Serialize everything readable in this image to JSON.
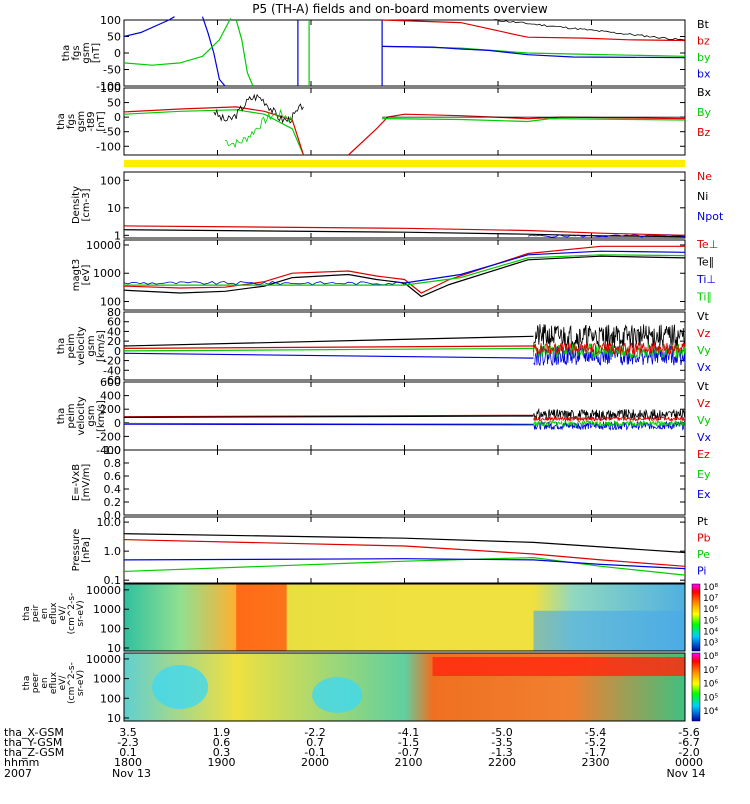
{
  "title": "P5 (TH-A) fields and on-board moments overview",
  "colors": {
    "black": "#000000",
    "red": "#dd0000",
    "green": "#00cc00",
    "blue": "#0000dd",
    "yellow": "#ffee00"
  },
  "chart_data": [
    {
      "type": "line",
      "id": "fgs",
      "ylabel": [
        "tha",
        "fgs",
        "gsm",
        "[nT]"
      ],
      "ylim": [
        -100,
        100
      ],
      "yticks": [
        "100",
        "50",
        "0",
        "-50",
        "-100"
      ],
      "ytick_values": [
        100,
        50,
        0,
        -50,
        -100
      ],
      "legend": [
        {
          "label": "Bt",
          "color": "black"
        },
        {
          "label": "bz",
          "color": "red"
        },
        {
          "label": "by",
          "color": "green"
        },
        {
          "label": "bx",
          "color": "blue"
        }
      ]
    },
    {
      "type": "line",
      "id": "fgs_t89",
      "ylabel": [
        "tha",
        "fgs",
        "gsm",
        "-t89",
        "[nT]"
      ],
      "ylim": [
        -130,
        100
      ],
      "yticks": [
        "100",
        "50",
        "0",
        "-50",
        "-100"
      ],
      "ytick_values": [
        100,
        50,
        0,
        -50,
        -100
      ],
      "legend": [
        {
          "label": "Bx",
          "color": "black"
        },
        {
          "label": "By",
          "color": "green"
        },
        {
          "label": "Bz",
          "color": "red"
        }
      ]
    },
    {
      "type": "line",
      "id": "density",
      "log": true,
      "ylabel": [
        "Density",
        "[cm-3]"
      ],
      "ylim": [
        0.8,
        200
      ],
      "yticks": [
        "100",
        "10",
        "1"
      ],
      "ytick_values": [
        100,
        10,
        1
      ],
      "legend": [
        {
          "label": "Ne",
          "color": "red"
        },
        {
          "label": "Ni",
          "color": "black"
        },
        {
          "label": "Npot",
          "color": "blue"
        }
      ]
    },
    {
      "type": "line",
      "id": "temp",
      "log": true,
      "ylabel": [
        "magt3",
        "[eV]"
      ],
      "ylim": [
        50,
        15000
      ],
      "yticks": [
        "10000",
        "1000",
        "100"
      ],
      "ytick_values": [
        10000,
        1000,
        100
      ],
      "legend": [
        {
          "label": "Te⊥",
          "color": "red"
        },
        {
          "label": "Te∥",
          "color": "black"
        },
        {
          "label": "Ti⊥",
          "color": "blue"
        },
        {
          "label": "Ti∥",
          "color": "green"
        }
      ]
    },
    {
      "type": "line",
      "id": "peim_vel1",
      "ylabel": [
        "tha",
        "peim",
        "velocity",
        "gsm",
        "[km/s]"
      ],
      "ylim": [
        -60,
        80
      ],
      "yticks": [
        "80",
        "60",
        "40",
        "20",
        "0",
        "-20",
        "-40",
        "-60"
      ],
      "ytick_values": [
        80,
        60,
        40,
        20,
        0,
        -20,
        -40,
        -60
      ],
      "legend": [
        {
          "label": "Vt",
          "color": "black"
        },
        {
          "label": "Vz",
          "color": "red"
        },
        {
          "label": "Vy",
          "color": "green"
        },
        {
          "label": "Vx",
          "color": "blue"
        }
      ]
    },
    {
      "type": "line",
      "id": "peim_vel2",
      "ylabel": [
        "tha",
        "peim",
        "velocity",
        "gsm",
        "[km/s]"
      ],
      "ylim": [
        -400,
        600
      ],
      "yticks": [
        "600",
        "400",
        "200",
        "0",
        "-200",
        "-400"
      ],
      "ytick_values": [
        600,
        400,
        200,
        0,
        -200,
        -400
      ],
      "legend": [
        {
          "label": "Vt",
          "color": "black"
        },
        {
          "label": "Vz",
          "color": "red"
        },
        {
          "label": "Vy",
          "color": "green"
        },
        {
          "label": "Vx",
          "color": "blue"
        }
      ]
    },
    {
      "type": "line",
      "id": "efield",
      "ylabel": [
        "E=-VxB",
        "[mV/m]"
      ],
      "ylim": [
        0,
        1
      ],
      "yticks": [
        "1.0",
        "0.8",
        "0.6",
        "0.4",
        "0.2",
        "0.0"
      ],
      "ytick_values": [
        1,
        0.8,
        0.6,
        0.4,
        0.2,
        0
      ],
      "legend": [
        {
          "label": "Ez",
          "color": "red"
        },
        {
          "label": "Ey",
          "color": "green"
        },
        {
          "label": "Ex",
          "color": "blue"
        }
      ]
    },
    {
      "type": "line",
      "id": "pressure",
      "log": true,
      "ylabel": [
        "Pressure",
        "[nPa]"
      ],
      "ylim": [
        0.08,
        15
      ],
      "yticks": [
        "10.0",
        "1.0",
        "0.1"
      ],
      "ytick_values": [
        10,
        1,
        0.1
      ],
      "legend": [
        {
          "label": "Pt",
          "color": "black"
        },
        {
          "label": "Pb",
          "color": "red"
        },
        {
          "label": "Pe",
          "color": "green"
        },
        {
          "label": "Pi",
          "color": "blue"
        }
      ]
    },
    {
      "type": "heatmap",
      "id": "peir",
      "ylabel": [
        "tha",
        "peir",
        "en",
        "eflux",
        "eV/",
        "(cm^2-s-",
        "sr-eV)"
      ],
      "yticks": [
        "10000",
        "1000",
        "100",
        "10"
      ],
      "ytick_values": [
        10000,
        1000,
        100,
        10
      ],
      "ylim": [
        7,
        20000
      ],
      "colorbar_ticks": [
        "10⁸",
        "10⁷",
        "10⁶",
        "10⁵",
        "10⁴",
        "10³"
      ]
    },
    {
      "type": "heatmap",
      "id": "peer",
      "ylabel": [
        "tha",
        "peer",
        "en",
        "eflux",
        "eV/",
        "(cm^2-s-",
        "sr-eV)"
      ],
      "yticks": [
        "10000",
        "1000",
        "100",
        "10"
      ],
      "ytick_values": [
        10000,
        1000,
        100,
        10
      ],
      "ylim": [
        7,
        20000
      ],
      "colorbar_ticks": [
        "10⁸",
        "10⁷",
        "10⁶",
        "10⁵",
        "10⁴"
      ]
    }
  ],
  "xaxis": {
    "rows": [
      {
        "label": "tha_X-GSM",
        "values": [
          "3.5",
          "1.9",
          "-2.2",
          "-4.1",
          "-5.0",
          "-5.4",
          "-5.6"
        ]
      },
      {
        "label": "tha_Y-GSM",
        "values": [
          "-2.3",
          "0.6",
          "0.7",
          "-1.5",
          "-3.5",
          "-5.2",
          "-6.7"
        ]
      },
      {
        "label": "tha_Z-GSM",
        "values": [
          "0.1",
          "0.3",
          "-0.1",
          "-0.7",
          "-1.3",
          "-1.7",
          "-2.0"
        ]
      },
      {
        "label": "hhmm",
        "values": [
          "1800",
          "1900",
          "2000",
          "2100",
          "2200",
          "2300",
          "0000"
        ]
      }
    ],
    "year": "2007",
    "start_date": "Nov 13",
    "end_date": "Nov 14"
  }
}
